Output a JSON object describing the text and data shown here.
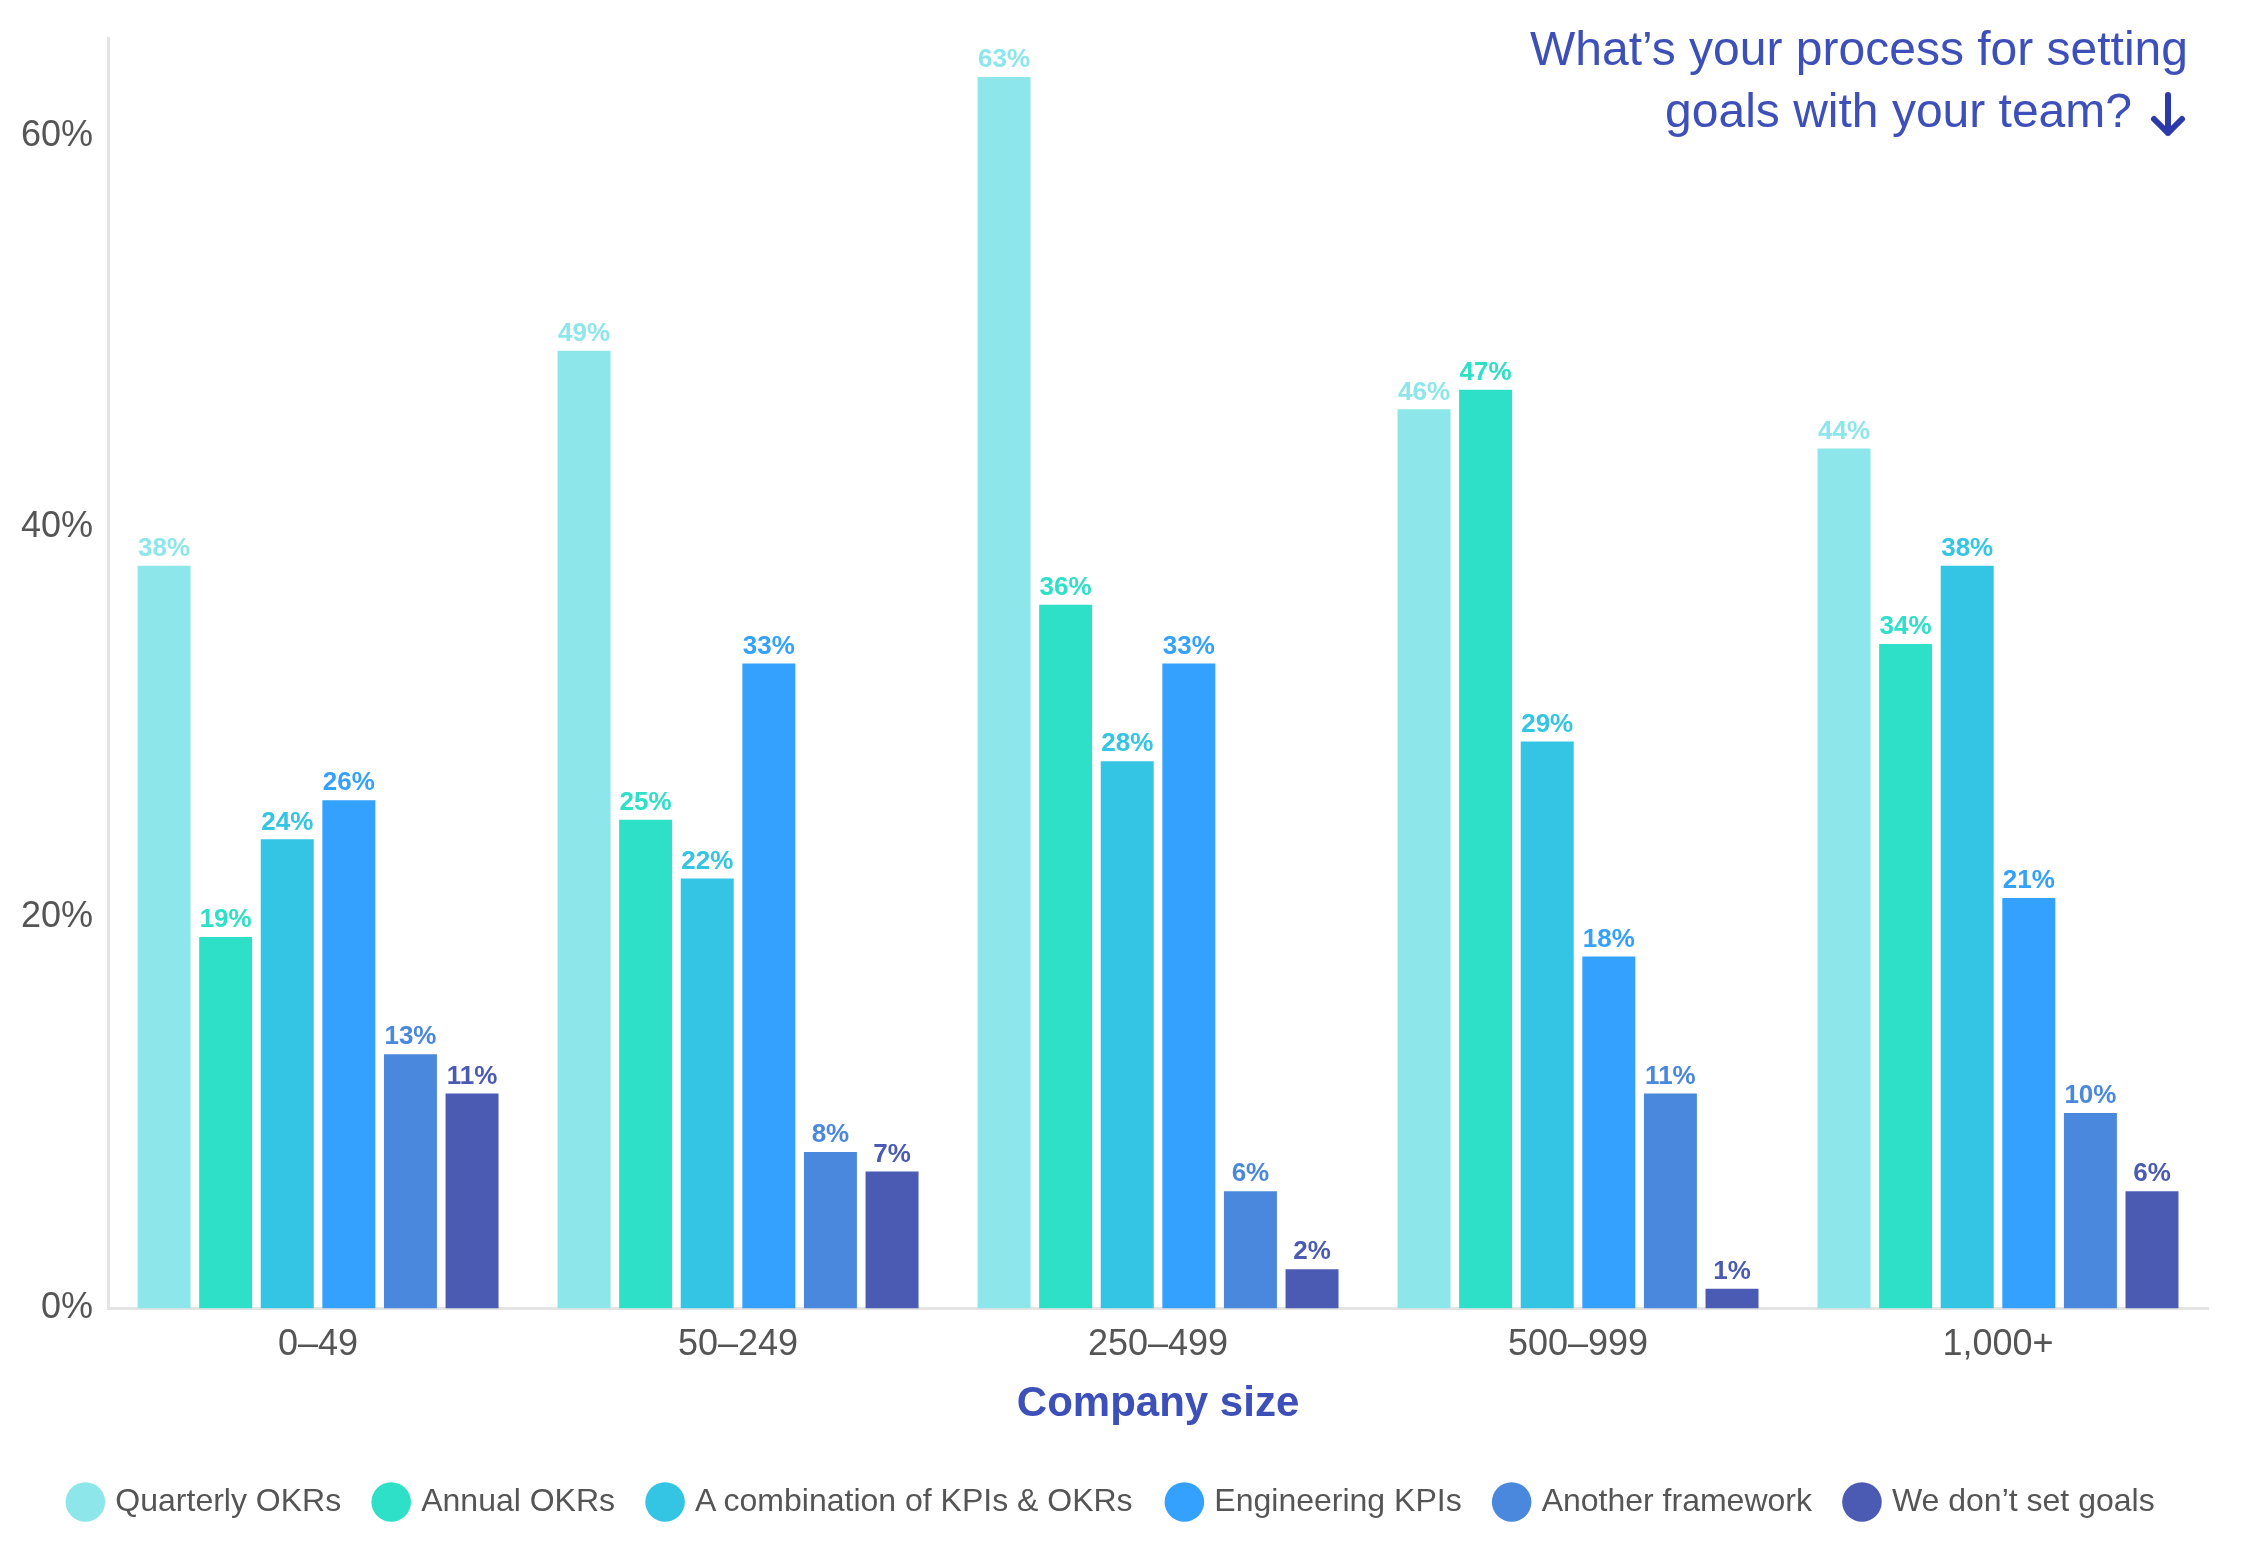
{
  "chart_data": {
    "type": "bar",
    "title": "What’s your process for setting goals with your team?",
    "xlabel": "Company size",
    "categories": [
      "0–49",
      "50–249",
      "250–499",
      "500–999",
      "1,000+"
    ],
    "series": [
      {
        "name": "Quarterly OKRs",
        "color": "#8de6ea",
        "values": [
          38,
          49,
          63,
          46,
          44
        ],
        "value_labels": [
          "38%",
          "49%",
          "63%",
          "46%",
          "44%"
        ]
      },
      {
        "name": "Annual OKRs",
        "color": "#2ee0c8",
        "values": [
          19,
          25,
          36,
          47,
          34
        ],
        "value_labels": [
          "19%",
          "25%",
          "36%",
          "47%",
          "34%"
        ]
      },
      {
        "name": "A combination of KPIs & OKRs",
        "color": "#33c5e3",
        "values": [
          24,
          22,
          28,
          29,
          38
        ],
        "value_labels": [
          "24%",
          "22%",
          "28%",
          "29%",
          "38%"
        ]
      },
      {
        "name": "Engineering KPIs",
        "color": "#33a1fd",
        "values": [
          26,
          33,
          33,
          18,
          21
        ],
        "value_labels": [
          "26%",
          "33%",
          "33%",
          "18%",
          "21%"
        ]
      },
      {
        "name": "Another framework",
        "color": "#4a88dd",
        "values": [
          13,
          8,
          6,
          11,
          10
        ],
        "value_labels": [
          "13%",
          "8%",
          "6%",
          "11%",
          "10%"
        ]
      },
      {
        "name": "We don’t set goals",
        "color": "#4b5bb3",
        "values": [
          11,
          7,
          2,
          1,
          6
        ],
        "value_labels": [
          "11%",
          "7%",
          "2%",
          "1%",
          "6%"
        ]
      }
    ],
    "ylim": [
      0,
      65
    ],
    "yticks": [
      {
        "value": 0,
        "label": "0%"
      },
      {
        "value": 20,
        "label": "20%"
      },
      {
        "value": 40,
        "label": "40%"
      },
      {
        "value": 60,
        "label": "60%"
      }
    ],
    "grid": false,
    "legend": "bottom"
  }
}
